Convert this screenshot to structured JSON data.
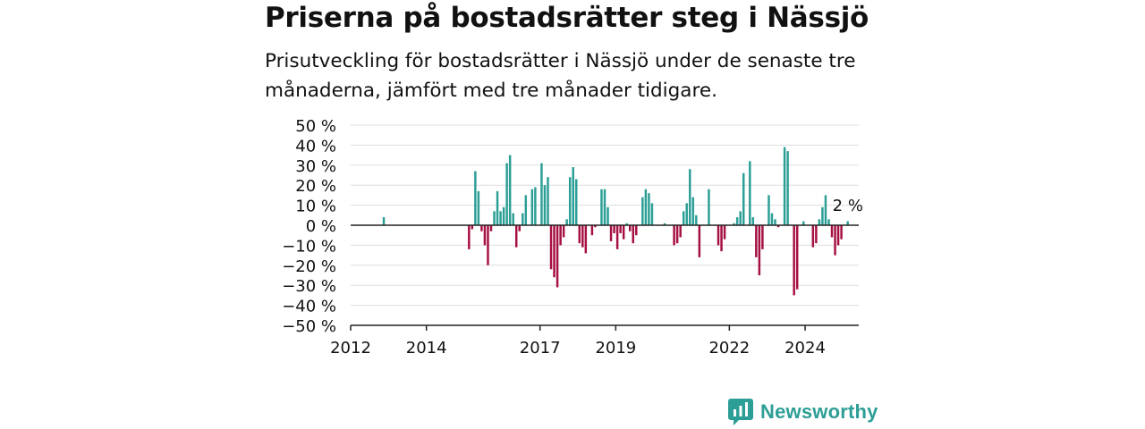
{
  "title": "Priserna på bostadsrätter steg i Nässjö",
  "subtitle": "Prisutveckling för bostadsrätter i Nässjö under de senaste tre månaderna, jämfört med tre månader tidigare.",
  "brand": {
    "name": "Newsworthy",
    "icon": "newsworthy-logo-icon",
    "color": "#2d9e96"
  },
  "chart_data": {
    "type": "bar",
    "x_axis": {
      "ticks": [
        "2012",
        "2014",
        "2017",
        "2019",
        "2022",
        "2024"
      ],
      "range": [
        "2012-01",
        "2025-06"
      ]
    },
    "y_axis": {
      "ticks": [
        50,
        40,
        30,
        20,
        10,
        0,
        -10,
        -20,
        -30,
        -40,
        -50
      ],
      "tick_labels": [
        "50 %",
        "40 %",
        "30 %",
        "20 %",
        "10 %",
        "0 %",
        "−10 %",
        "−20 %",
        "−30 %",
        "−40 %",
        "−50 %"
      ],
      "range": [
        -50,
        50
      ]
    },
    "grid": true,
    "colors": {
      "positive": "#2b9e96",
      "negative": "#a50f42",
      "grid": "#dddddd",
      "axis": "#222222"
    },
    "annotation": {
      "text": "2 %",
      "date": "2025-02"
    },
    "series": [
      {
        "points": [
          [
            "2012-11",
            4
          ],
          [
            "2015-02",
            -12
          ],
          [
            "2015-03",
            -2
          ],
          [
            "2015-04",
            27
          ],
          [
            "2015-05",
            17
          ],
          [
            "2015-06",
            -3
          ],
          [
            "2015-07",
            -10
          ],
          [
            "2015-08",
            -20
          ],
          [
            "2015-09",
            -3
          ],
          [
            "2015-10",
            7
          ],
          [
            "2015-11",
            17
          ],
          [
            "2015-12",
            7
          ],
          [
            "2016-01",
            9
          ],
          [
            "2016-02",
            31
          ],
          [
            "2016-03",
            35
          ],
          [
            "2016-04",
            6
          ],
          [
            "2016-05",
            -11
          ],
          [
            "2016-06",
            -3
          ],
          [
            "2016-07",
            6
          ],
          [
            "2016-08",
            15
          ],
          [
            "2016-10",
            18
          ],
          [
            "2016-11",
            19
          ],
          [
            "2017-01",
            31
          ],
          [
            "2017-02",
            20
          ],
          [
            "2017-03",
            24
          ],
          [
            "2017-04",
            -22
          ],
          [
            "2017-05",
            -26
          ],
          [
            "2017-06",
            -31
          ],
          [
            "2017-07",
            -10
          ],
          [
            "2017-08",
            -6
          ],
          [
            "2017-09",
            3
          ],
          [
            "2017-10",
            24
          ],
          [
            "2017-11",
            29
          ],
          [
            "2017-12",
            23
          ],
          [
            "2018-01",
            -9
          ],
          [
            "2018-02",
            -11
          ],
          [
            "2018-03",
            -14
          ],
          [
            "2018-05",
            -5
          ],
          [
            "2018-06",
            -1
          ],
          [
            "2018-08",
            18
          ],
          [
            "2018-09",
            18
          ],
          [
            "2018-10",
            9
          ],
          [
            "2018-11",
            -8
          ],
          [
            "2018-12",
            -4
          ],
          [
            "2019-01",
            -12
          ],
          [
            "2019-02",
            -4
          ],
          [
            "2019-03",
            -7
          ],
          [
            "2019-04",
            1
          ],
          [
            "2019-05",
            -3
          ],
          [
            "2019-06",
            -9
          ],
          [
            "2019-07",
            -5
          ],
          [
            "2019-09",
            14
          ],
          [
            "2019-10",
            18
          ],
          [
            "2019-11",
            16
          ],
          [
            "2019-12",
            11
          ],
          [
            "2020-04",
            1
          ],
          [
            "2020-07",
            -10
          ],
          [
            "2020-08",
            -9
          ],
          [
            "2020-09",
            -6
          ],
          [
            "2020-10",
            7
          ],
          [
            "2020-11",
            11
          ],
          [
            "2020-12",
            28
          ],
          [
            "2021-01",
            14
          ],
          [
            "2021-02",
            5
          ],
          [
            "2021-03",
            -16
          ],
          [
            "2021-06",
            18
          ],
          [
            "2021-09",
            -10
          ],
          [
            "2021-10",
            -13
          ],
          [
            "2021-11",
            -7
          ],
          [
            "2022-02",
            1
          ],
          [
            "2022-03",
            4
          ],
          [
            "2022-04",
            7
          ],
          [
            "2022-05",
            26
          ],
          [
            "2022-07",
            32
          ],
          [
            "2022-08",
            4
          ],
          [
            "2022-09",
            -16
          ],
          [
            "2022-10",
            -25
          ],
          [
            "2022-11",
            -12
          ],
          [
            "2023-01",
            15
          ],
          [
            "2023-02",
            6
          ],
          [
            "2023-03",
            3
          ],
          [
            "2023-04",
            -1
          ],
          [
            "2023-06",
            39
          ],
          [
            "2023-07",
            37
          ],
          [
            "2023-09",
            -35
          ],
          [
            "2023-10",
            -32
          ],
          [
            "2023-12",
            2
          ],
          [
            "2024-03",
            -11
          ],
          [
            "2024-04",
            -9
          ],
          [
            "2024-05",
            3
          ],
          [
            "2024-06",
            9
          ],
          [
            "2024-07",
            15
          ],
          [
            "2024-08",
            3
          ],
          [
            "2024-09",
            -6
          ],
          [
            "2024-10",
            -15
          ],
          [
            "2024-11",
            -10
          ],
          [
            "2024-12",
            -7
          ],
          [
            "2025-02",
            2
          ]
        ]
      }
    ]
  }
}
